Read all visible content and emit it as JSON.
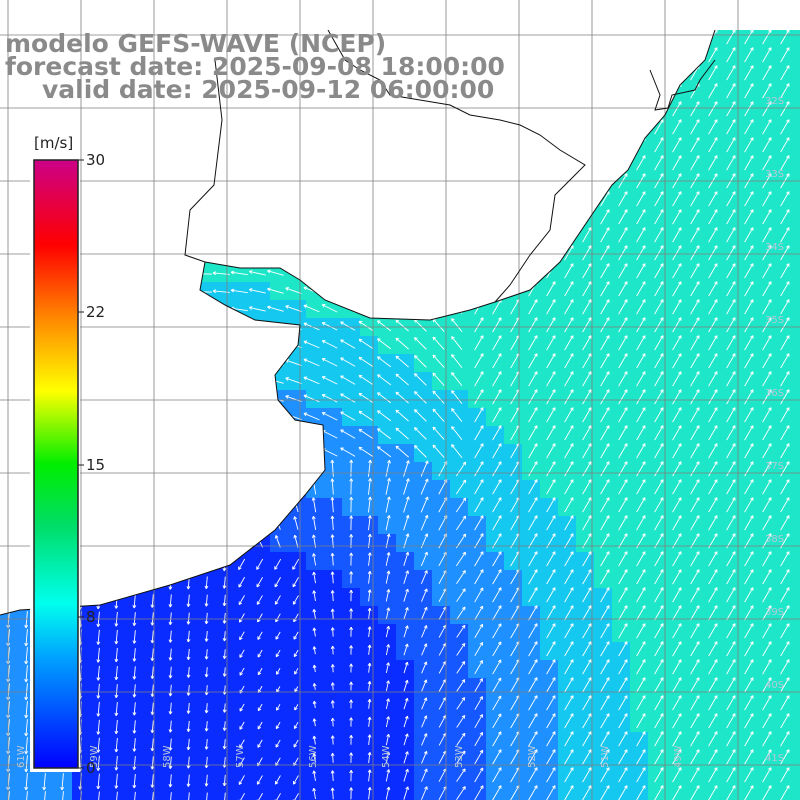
{
  "title": {
    "model": "modelo GEFS-WAVE (NCEP)",
    "forecast": "forecast date: 2025-09-08 18:00:00",
    "valid": "valid date: 2025-09-12 06:00:00"
  },
  "colorbar": {
    "unit": "[m/s]",
    "ticks": [
      "30",
      "22",
      "15",
      "8",
      "0"
    ],
    "colors": [
      "#0000ff",
      "#00a0ff",
      "#00ffee",
      "#00ee00",
      "#ffff00",
      "#ff8800",
      "#ff0000",
      "#dd0066",
      "#cc0088"
    ]
  },
  "lat_labels": [
    "32S",
    "33S",
    "34S",
    "35S",
    "36S",
    "37S",
    "38S",
    "39S",
    "40S",
    "41S"
  ],
  "lon_labels": [
    "61W",
    "59W",
    "58W",
    "57W",
    "56W",
    "54W",
    "53W",
    "52W",
    "51W",
    "49W"
  ],
  "colors": {
    "deep_low": "#0a2cff",
    "low": "#1558ff",
    "mid": "#1e90ff",
    "high": "#14c8f0",
    "peak": "#1ee6c8",
    "land": "#ffffff",
    "grid": "#7f7f7f",
    "arrow": "#ffffff"
  },
  "icons": {
    "wind_arrow": "arrow-icon"
  }
}
